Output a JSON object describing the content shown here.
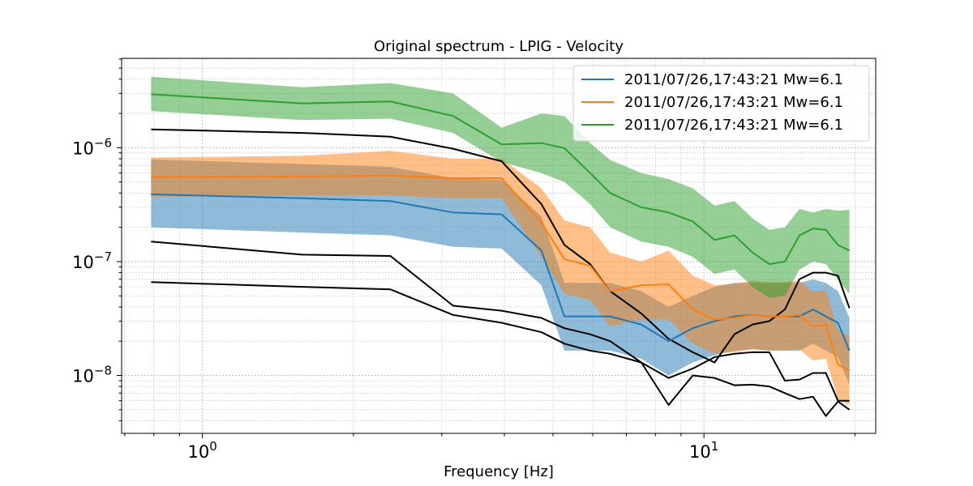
{
  "chart_data": {
    "type": "line",
    "title": "Original spectrum - LPIG - Velocity",
    "xlabel": "Frequency [Hz]",
    "ylabel": "",
    "xscale": "log",
    "yscale": "log",
    "xlim": [
      0.69,
      22.0
    ],
    "ylim": [
      3.1e-09,
      6.1e-06
    ],
    "x_ticks": [
      {
        "value": 1,
        "base": "10",
        "exp": "0"
      },
      {
        "value": 10,
        "base": "10",
        "exp": "1"
      }
    ],
    "y_ticks": [
      {
        "value": 1e-08,
        "base": "10",
        "exp": "−8"
      },
      {
        "value": 1e-07,
        "base": "10",
        "exp": "−7"
      },
      {
        "value": 1e-06,
        "base": "10",
        "exp": "−6"
      }
    ],
    "grid": true,
    "legend_position": "top-right",
    "series": [
      {
        "name": "2011/07/26,17:43:21 Mw=6.1",
        "color": "#1f77b4",
        "x": [
          0.79,
          1.58,
          2.37,
          3.16,
          3.95,
          4.74,
          5.27,
          5.93,
          6.5,
          7.5,
          8.5,
          9.5,
          10.5,
          11.5,
          12.5,
          13.5,
          14.5,
          15.5,
          16.5,
          17.5,
          18.5,
          19.5
        ],
        "y": [
          3.9e-07,
          3.6e-07,
          3.4e-07,
          2.7e-07,
          2.6e-07,
          1.25e-07,
          3.3e-08,
          3.3e-08,
          3.3e-08,
          2.8e-08,
          2e-08,
          2.6e-08,
          3e-08,
          3.3e-08,
          3.4e-08,
          3.3e-08,
          3.3e-08,
          3.3e-08,
          3.8e-08,
          3.3e-08,
          2.9e-08,
          1.65e-08
        ],
        "upper": [
          7.9e-07,
          7.2e-07,
          6.8e-07,
          5.4e-07,
          5.2e-07,
          2.5e-07,
          6.5e-08,
          6.5e-08,
          6.5e-08,
          5.5e-08,
          4e-08,
          5e-08,
          6e-08,
          6.5e-08,
          6.5e-08,
          6.5e-08,
          6.5e-08,
          6.5e-08,
          7e-08,
          6.5e-08,
          5.5e-08,
          3.2e-08
        ],
        "lower": [
          2e-07,
          1.8e-07,
          1.7e-07,
          1.35e-07,
          1.3e-07,
          6.2e-08,
          1.65e-08,
          1.65e-08,
          1.65e-08,
          1.4e-08,
          1e-08,
          1.3e-08,
          1.5e-08,
          1.65e-08,
          1.7e-08,
          1.65e-08,
          1.65e-08,
          1.65e-08,
          1.9e-08,
          1.65e-08,
          1.45e-08,
          8.3e-09
        ]
      },
      {
        "name": "2011/07/26,17:43:21 Mw=6.1",
        "color": "#ff7f0e",
        "x": [
          0.79,
          1.58,
          2.37,
          3.16,
          3.95,
          4.74,
          5.27,
          5.93,
          6.5,
          7.5,
          8.5,
          9.5,
          10.5,
          11.5,
          12.5,
          13.5,
          14.5,
          15.5,
          16.5,
          17.5,
          18.5,
          19.5
        ],
        "y": [
          5.5e-07,
          5.6e-07,
          5.7e-07,
          5.4e-07,
          5.4e-07,
          2.2e-07,
          1.05e-07,
          9.2e-08,
          5.5e-08,
          6.2e-08,
          6.3e-08,
          3.8e-08,
          3.1e-08,
          3.2e-08,
          3.4e-08,
          3.3e-08,
          3.3e-08,
          3.4e-08,
          2.7e-08,
          2.8e-08,
          1.25e-08,
          1.1e-08
        ],
        "upper": [
          8.2e-07,
          8.5e-07,
          9.4e-07,
          8e-07,
          8e-07,
          4.4e-07,
          2.3e-07,
          2e-07,
          1.2e-07,
          1e-07,
          1.25e-07,
          7.5e-08,
          6.2e-08,
          6.4e-08,
          6.8e-08,
          6.6e-08,
          6.6e-08,
          6.8e-08,
          5.4e-08,
          5.6e-08,
          2.5e-08,
          2.2e-08
        ],
        "lower": [
          3.7e-07,
          3.8e-07,
          3.8e-07,
          3.6e-07,
          3.6e-07,
          1.1e-07,
          5.2e-08,
          4.6e-08,
          2.7e-08,
          3.1e-08,
          3.1e-08,
          1.9e-08,
          1.55e-08,
          1.6e-08,
          1.7e-08,
          1.65e-08,
          1.65e-08,
          1.7e-08,
          1.35e-08,
          1.4e-08,
          6.2e-09,
          5.5e-09
        ]
      },
      {
        "name": "2011/07/26,17:43:21 Mw=6.1",
        "color": "#2ca02c",
        "x": [
          0.79,
          1.58,
          2.37,
          3.16,
          3.95,
          4.74,
          5.27,
          5.93,
          6.5,
          7.5,
          8.5,
          9.5,
          10.5,
          11.5,
          12.5,
          13.5,
          14.5,
          15.5,
          16.5,
          17.5,
          18.5,
          19.5
        ],
        "y": [
          2.95e-06,
          2.45e-06,
          2.55e-06,
          1.9e-06,
          1.07e-06,
          1.1e-06,
          9.9e-07,
          6e-07,
          4e-07,
          3e-07,
          2.7e-07,
          2.25e-07,
          1.55e-07,
          1.7e-07,
          1.2e-07,
          9.5e-08,
          1e-07,
          1.7e-07,
          1.95e-07,
          1.9e-07,
          1.4e-07,
          1.25e-07
        ],
        "upper": [
          4.2e-06,
          3.4e-06,
          3.7e-06,
          3e-06,
          1.5e-06,
          2e-06,
          1.9e-06,
          1.1e-06,
          7.8e-07,
          6e-07,
          5.3e-07,
          4.4e-07,
          3.1e-07,
          3.4e-07,
          2.4e-07,
          1.9e-07,
          2e-07,
          2.9e-07,
          2.7e-07,
          2.9e-07,
          2.8e-07,
          2.85e-07
        ],
        "lower": [
          2.1e-06,
          1.75e-06,
          1.8e-06,
          1.35e-06,
          7.5e-07,
          6e-07,
          5e-07,
          3.2e-07,
          2e-07,
          1.5e-07,
          1.35e-07,
          1.1e-07,
          7.8e-08,
          8.5e-08,
          6e-08,
          4.8e-08,
          5e-08,
          8.5e-08,
          1e-07,
          9.5e-08,
          7e-08,
          5.2e-08
        ]
      }
    ],
    "reference_curves": [
      {
        "color": "#000000",
        "x": [
          0.79,
          1.58,
          2.37,
          3.16,
          3.95,
          4.74,
          5.27,
          5.93,
          6.5,
          7.5,
          8.5,
          9.5,
          10.5,
          11.5,
          12.5,
          13.5,
          14.5,
          15.5,
          16.5,
          17.5,
          18.5,
          19.5
        ],
        "y": [
          1.45e-06,
          1.35e-06,
          1.25e-06,
          9.8e-07,
          7.6e-07,
          3.2e-07,
          1.4e-07,
          9.5e-08,
          5.5e-08,
          3.5e-08,
          2.1e-08,
          1.6e-08,
          1.3e-08,
          2.3e-08,
          2.8e-08,
          3e-08,
          3.8e-08,
          7e-08,
          8e-08,
          8e-08,
          7.5e-08,
          3.9e-08
        ]
      },
      {
        "color": "#000000",
        "x": [
          0.79,
          1.58,
          2.37,
          3.16,
          3.95,
          4.74,
          5.27,
          5.93,
          6.5,
          7.5,
          8.5,
          9.5,
          10.5,
          11.5,
          12.5,
          13.5,
          14.5,
          15.5,
          16.5,
          17.5,
          18.5,
          19.5
        ],
        "y": [
          1.5e-07,
          1.15e-07,
          1.12e-07,
          4.1e-08,
          3.7e-08,
          3.2e-08,
          2.6e-08,
          2.3e-08,
          2e-08,
          1.3e-08,
          9.5e-09,
          1.15e-08,
          1.45e-08,
          1.55e-08,
          1.6e-08,
          1.6e-08,
          9e-09,
          9.2e-09,
          1.05e-08,
          1.05e-08,
          6e-09,
          6e-09
        ]
      },
      {
        "color": "#000000",
        "x": [
          0.79,
          1.58,
          2.37,
          3.16,
          3.95,
          4.74,
          5.27,
          5.93,
          6.5,
          7.5,
          8.5,
          9.5,
          10.5,
          11.5,
          12.5,
          13.5,
          14.5,
          15.5,
          16.5,
          17.5,
          18.5,
          19.5
        ],
        "y": [
          6.6e-08,
          6e-08,
          5.7e-08,
          3.4e-08,
          2.9e-08,
          2.4e-08,
          1.9e-08,
          1.65e-08,
          1.55e-08,
          1.3e-08,
          5.5e-09,
          1e-08,
          9.5e-09,
          8.2e-09,
          8.3e-09,
          8e-09,
          7e-09,
          6.2e-09,
          6.5e-09,
          4.4e-09,
          5.9e-09,
          5e-09
        ]
      }
    ]
  }
}
